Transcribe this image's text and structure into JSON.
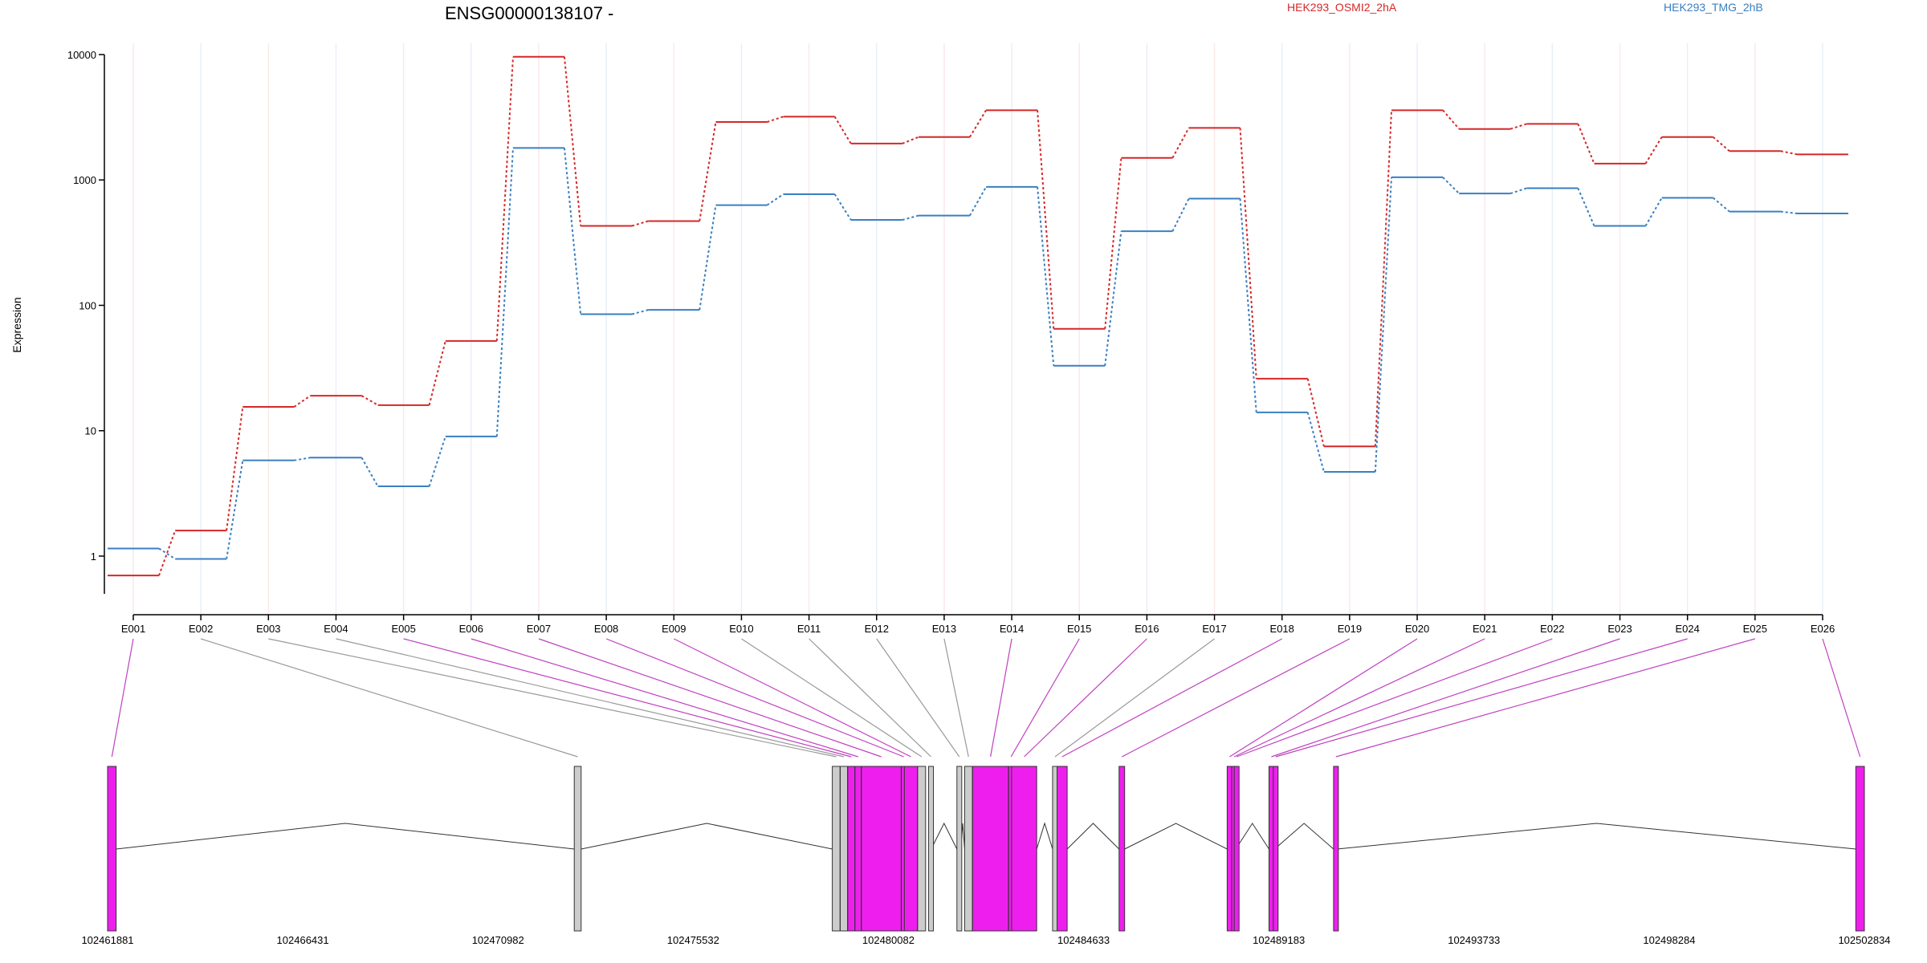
{
  "chart_data": {
    "type": "line",
    "title": "ENSG00000138107 -",
    "ylabel": "Expression",
    "xlabel": "",
    "yscale": "log",
    "ylim": [
      0.5,
      10000
    ],
    "yticks": [
      "1",
      "10",
      "100",
      "1000",
      "10000"
    ],
    "grid": true,
    "legend_placement": "top",
    "categories": [
      "E001",
      "E002",
      "E003",
      "E004",
      "E005",
      "E006",
      "E007",
      "E008",
      "E009",
      "E010",
      "E011",
      "E012",
      "E013",
      "E014",
      "E015",
      "E016",
      "E017",
      "E018",
      "E019",
      "E020",
      "E021",
      "E022",
      "E023",
      "E024",
      "E025",
      "E026"
    ],
    "series": [
      {
        "name": "HEK293_OSMI2_2hA",
        "color": "#d62728",
        "values": [
          0.7,
          1.6,
          15.5,
          19,
          16,
          52,
          9600,
          430,
          470,
          2900,
          3200,
          1950,
          2200,
          3600,
          65,
          1500,
          2600,
          26,
          7.5,
          3600,
          2550,
          2800,
          1350,
          2200,
          1700,
          1600
        ]
      },
      {
        "name": "HEK293_TMG_2hB",
        "color": "#3a7fc1",
        "values": [
          1.15,
          0.95,
          5.8,
          6.1,
          3.6,
          9,
          1800,
          85,
          92,
          630,
          770,
          480,
          520,
          880,
          33,
          390,
          710,
          14,
          4.7,
          1050,
          780,
          860,
          430,
          720,
          560,
          540
        ]
      }
    ]
  },
  "gene_model": {
    "coord_ticks": [
      "102461881",
      "102466431",
      "102470982",
      "102475532",
      "102480082",
      "102484633",
      "102489183",
      "102493733",
      "102498284",
      "102502834"
    ],
    "exons": [
      {
        "id": "E001",
        "start": 102461881,
        "end": 102462081,
        "status": "significant"
      },
      {
        "id": "E002",
        "start": 102472760,
        "end": 102472920,
        "status": "normal"
      },
      {
        "id": "E003",
        "start": 102478775,
        "end": 102478955,
        "status": "normal"
      },
      {
        "id": "E004",
        "start": 102478960,
        "end": 102479130,
        "status": "normal"
      },
      {
        "id": "E005",
        "start": 102479135,
        "end": 102479300,
        "status": "significant"
      },
      {
        "id": "E006",
        "start": 102479305,
        "end": 102479450,
        "status": "significant"
      },
      {
        "id": "E007",
        "start": 102479455,
        "end": 102480380,
        "status": "significant"
      },
      {
        "id": "E008",
        "start": 102480385,
        "end": 102480450,
        "status": "significant"
      },
      {
        "id": "E009",
        "start": 102480455,
        "end": 102480760,
        "status": "significant"
      },
      {
        "id": "E010",
        "start": 102480765,
        "end": 102480950,
        "status": "normal"
      },
      {
        "id": "E011",
        "start": 102481020,
        "end": 102481080,
        "status": "normal"
      },
      {
        "id": "E012",
        "start": 102481680,
        "end": 102481770,
        "status": "normal"
      },
      {
        "id": "E013",
        "start": 102481860,
        "end": 102482040,
        "status": "normal"
      },
      {
        "id": "E014",
        "start": 102482045,
        "end": 102482880,
        "status": "significant"
      },
      {
        "id": "E015",
        "start": 102482885,
        "end": 102482950,
        "status": "significant"
      },
      {
        "id": "E016",
        "start": 102482955,
        "end": 102483540,
        "status": "significant"
      },
      {
        "id": "E017",
        "start": 102483910,
        "end": 102484010,
        "status": "normal"
      },
      {
        "id": "E018",
        "start": 102484015,
        "end": 102484250,
        "status": "significant"
      },
      {
        "id": "E019",
        "start": 102485460,
        "end": 102485590,
        "status": "significant"
      },
      {
        "id": "E020",
        "start": 102487980,
        "end": 102488080,
        "status": "significant"
      },
      {
        "id": "E021",
        "start": 102488085,
        "end": 102488140,
        "status": "significant"
      },
      {
        "id": "E022",
        "start": 102488145,
        "end": 102488180,
        "status": "significant"
      },
      {
        "id": "E023",
        "start": 102488955,
        "end": 102489050,
        "status": "significant"
      },
      {
        "id": "E024",
        "start": 102489055,
        "end": 102489085,
        "status": "significant"
      },
      {
        "id": "E025",
        "start": 102490460,
        "end": 102490540,
        "status": "significant"
      },
      {
        "id": "E026",
        "start": 102502634,
        "end": 102502834,
        "status": "significant"
      }
    ],
    "colors": {
      "significant": "#ee1fee",
      "normal": "#cccccc"
    }
  }
}
